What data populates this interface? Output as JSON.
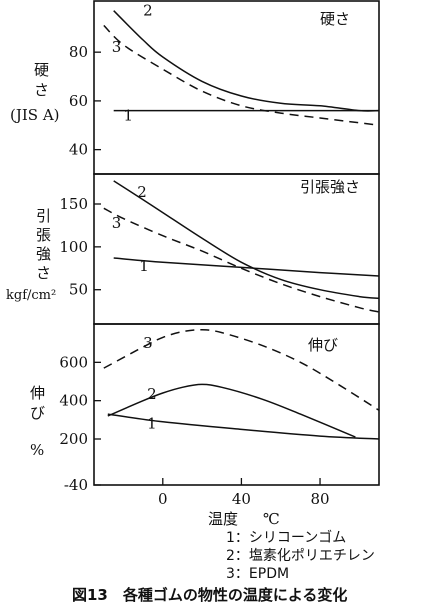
{
  "chart_data": [
    {
      "type": "line",
      "title": "硬さ",
      "ylabel": [
        "硬",
        "さ",
        "(JIS A)"
      ],
      "ylim": [
        30,
        101
      ],
      "yticks": [
        40,
        60,
        80
      ],
      "xlim": [
        -35,
        110
      ],
      "series": [
        {
          "name": "1",
          "style": "solid",
          "x": [
            -25,
            0,
            40,
            80,
            100,
            110
          ],
          "y": [
            56,
            56,
            56,
            56,
            56,
            56
          ]
        },
        {
          "name": "2",
          "style": "solid",
          "x": [
            -25,
            -10,
            0,
            20,
            40,
            60,
            80,
            100,
            110
          ],
          "y": [
            97,
            85,
            78,
            68,
            62,
            59,
            58,
            56,
            56
          ]
        },
        {
          "name": "3",
          "style": "dashed",
          "x": [
            -30,
            -20,
            0,
            20,
            40,
            60,
            80,
            100,
            110
          ],
          "y": [
            91,
            83,
            73,
            64,
            58,
            55,
            53,
            51,
            50
          ]
        }
      ]
    },
    {
      "type": "line",
      "title": "引張強さ",
      "ylabel": [
        "引",
        "張",
        "強",
        "さ",
        "kgf/cm²"
      ],
      "ylim": [
        10,
        185
      ],
      "yticks": [
        50,
        100,
        150
      ],
      "xlim": [
        -35,
        110
      ],
      "series": [
        {
          "name": "1",
          "style": "solid",
          "x": [
            -25,
            0,
            40,
            80,
            110
          ],
          "y": [
            87,
            82,
            76,
            70,
            66
          ]
        },
        {
          "name": "2",
          "style": "solid",
          "x": [
            -25,
            -10,
            0,
            20,
            40,
            60,
            80,
            100,
            110
          ],
          "y": [
            177,
            155,
            140,
            110,
            82,
            62,
            50,
            42,
            40
          ]
        },
        {
          "name": "3",
          "style": "dashed",
          "x": [
            -30,
            -20,
            0,
            20,
            40,
            60,
            80,
            100,
            110
          ],
          "y": [
            145,
            133,
            113,
            95,
            75,
            57,
            42,
            29,
            24
          ]
        }
      ]
    },
    {
      "type": "line",
      "title": "伸び",
      "ylabel": [
        "伸",
        "び",
        "%"
      ],
      "ylim": [
        -40,
        800
      ],
      "yticks": [
        -40,
        200,
        400,
        600
      ],
      "xlim": [
        -35,
        110
      ],
      "xlabel": "温度",
      "xunit": "℃",
      "xticks": [
        0,
        40,
        80
      ],
      "series": [
        {
          "name": "1",
          "style": "solid",
          "x": [
            -28,
            0,
            40,
            80,
            110
          ],
          "y": [
            330,
            290,
            250,
            215,
            200
          ]
        },
        {
          "name": "2",
          "style": "solid",
          "x": [
            -28,
            -10,
            0,
            10,
            20,
            30,
            50,
            70,
            98
          ],
          "y": [
            320,
            400,
            440,
            470,
            485,
            470,
            410,
            330,
            210
          ]
        },
        {
          "name": "3",
          "style": "dashed",
          "x": [
            -30,
            -10,
            0,
            10,
            20,
            30,
            50,
            70,
            90,
            110
          ],
          "y": [
            570,
            680,
            730,
            760,
            770,
            755,
            690,
            600,
            480,
            350
          ]
        }
      ]
    }
  ],
  "legend": [
    "1：シリコーンゴム",
    "2：塩素化ポリエチレン",
    "3：EPDM"
  ],
  "caption": "図13　各種ゴムの物性の温度による変化"
}
